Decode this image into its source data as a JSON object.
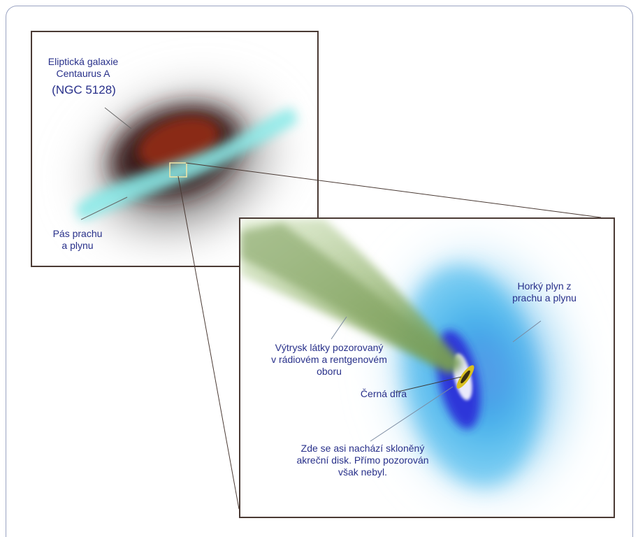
{
  "galaxy_panel": {
    "title_line1": "Eliptická galaxie",
    "title_line2": "Centaurus A",
    "designation": "(NGC 5128)",
    "dust_label_line1": "Pás prachu",
    "dust_label_line2": "a plynu"
  },
  "zoom_panel": {
    "hot_gas_line1": "Horký plyn z",
    "hot_gas_line2": "prachu a plynu",
    "jet_line1": "Výtrysk látky pozorovaný",
    "jet_line2": "v rádiovém a rentgenovém",
    "jet_line3": "oboru",
    "black_hole": "Černá díra",
    "disk_line1": "Zde se asi nachází skloněný",
    "disk_line2": "akreční disk. Přímo pozorován",
    "disk_line3": "však nebyl."
  },
  "colors": {
    "label_text": "#28308a",
    "panel_border": "#4a3a34",
    "frame_border": "#9aa3c2",
    "dust_lane": "#7ee8e6",
    "galaxy_core": "#8a2a14",
    "jet": "#8fb06a",
    "hot_gas": "#2aa8e8",
    "inner_disk": "#2a2ad8",
    "black_hole_disk": "#d8c020"
  }
}
